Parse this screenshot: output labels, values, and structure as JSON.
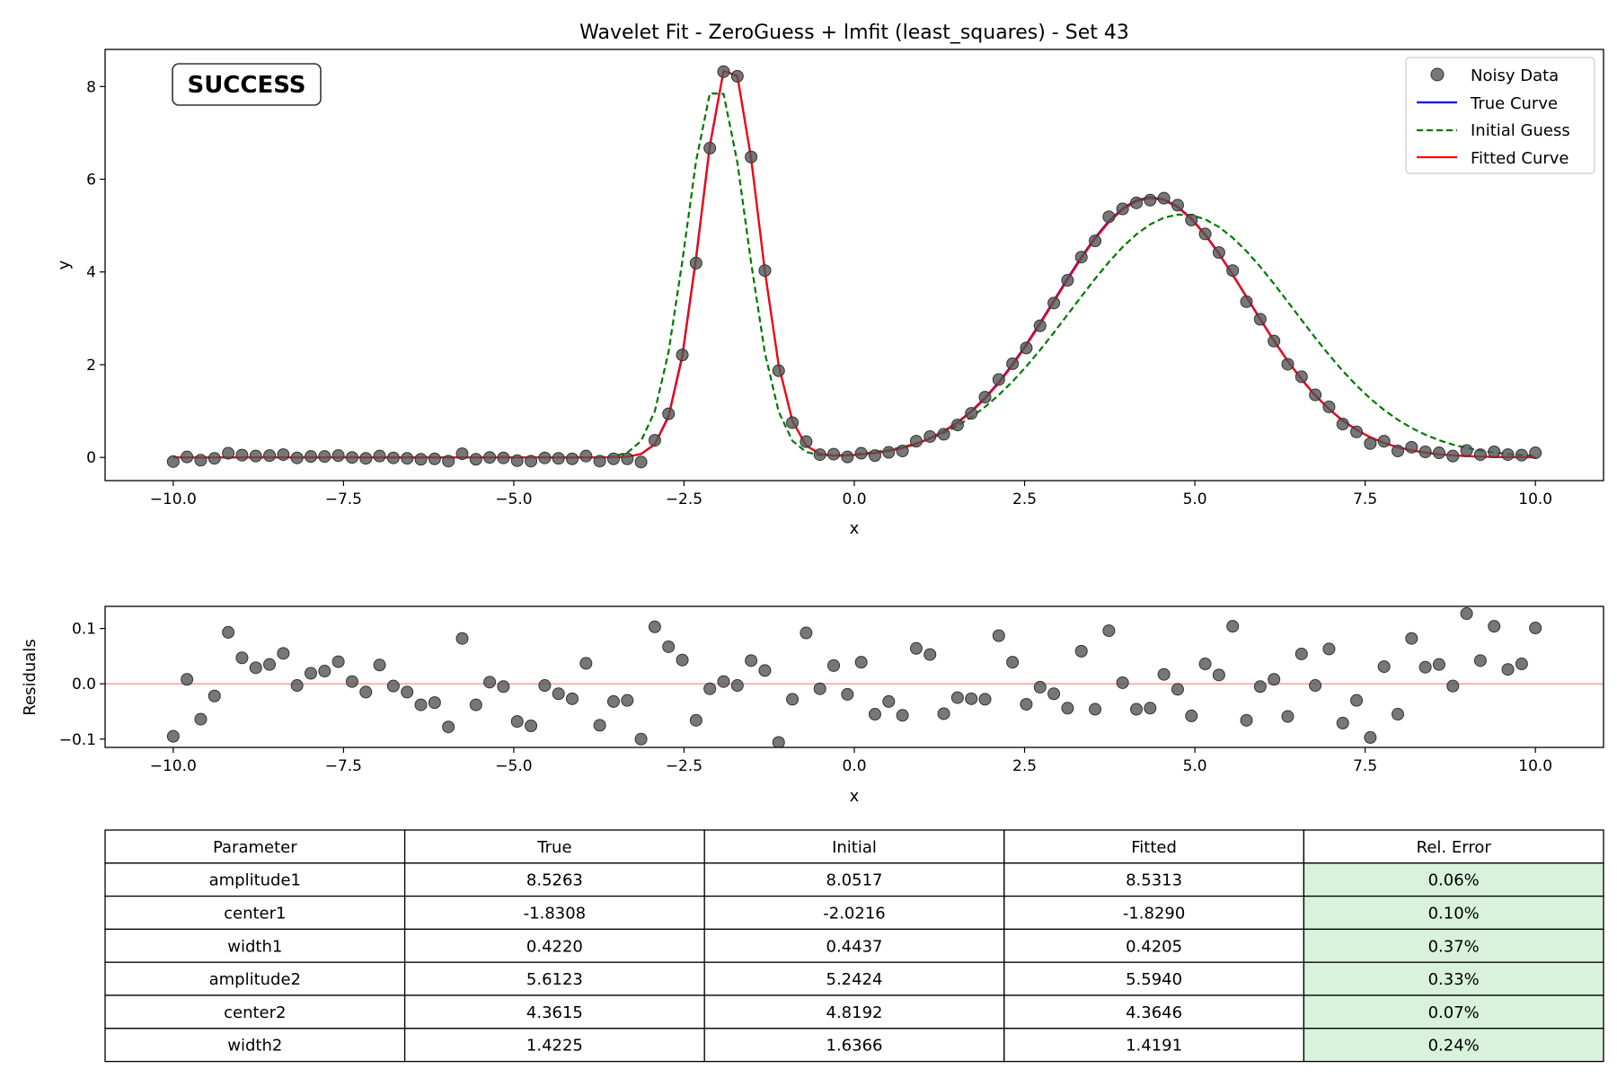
{
  "status_label": "SUCCESS",
  "colors": {
    "data": "#555555",
    "true_curve": "#0000ff",
    "initial": "#007700",
    "fitted": "#ff0000",
    "success": "#008000",
    "zero_line": "#ffb0b0",
    "good_cell": "#d8f2dc"
  },
  "chart_data": [
    {
      "type": "line",
      "title": "Wavelet Fit - ZeroGuess + lmfit (least_squares) - Set 43",
      "xlabel": "x",
      "ylabel": "y",
      "xlim": [
        -11.0,
        11.0
      ],
      "ylim": [
        -0.5,
        8.8
      ],
      "xticks": [
        -10.0,
        -7.5,
        -5.0,
        -2.5,
        0.0,
        2.5,
        5.0,
        7.5,
        10.0
      ],
      "xtick_labels": [
        "−10.0",
        "−7.5",
        "−5.0",
        "−2.5",
        "0.0",
        "2.5",
        "5.0",
        "7.5",
        "10.0"
      ],
      "yticks": [
        0,
        2,
        4,
        6,
        8
      ],
      "ytick_labels": [
        "0",
        "2",
        "4",
        "6",
        "8"
      ],
      "legend_position": "top-right",
      "legend": [
        "Noisy Data",
        "True Curve",
        "Initial Guess",
        "Fitted Curve"
      ],
      "x_range": [
        -10.0,
        10.0
      ],
      "num_points": 100,
      "series": [
        {
          "name": "Noisy Data",
          "style": "scatter",
          "color": "#555555",
          "values": [
            -0.09,
            0.01,
            -0.06,
            -0.02,
            0.09,
            0.05,
            0.03,
            0.04,
            0.06,
            -0.01,
            0.02,
            0.02,
            0.04,
            0.0,
            -0.02,
            0.03,
            -0.01,
            -0.02,
            -0.04,
            -0.03,
            -0.08,
            0.08,
            -0.04,
            0.0,
            -0.01,
            -0.07,
            -0.08,
            -0.01,
            -0.02,
            -0.03,
            0.03,
            -0.08,
            -0.03,
            -0.03,
            -0.1,
            0.37,
            0.94,
            2.21,
            4.19,
            6.67,
            8.32,
            8.22,
            6.48,
            4.03,
            1.87,
            0.75,
            0.34,
            0.06,
            0.07,
            0.01,
            0.09,
            0.04,
            0.11,
            0.14,
            0.35,
            0.45,
            0.5,
            0.7,
            0.95,
            1.3,
            1.68,
            2.02,
            2.36,
            2.84,
            3.33,
            3.82,
            4.32,
            4.67,
            5.19,
            5.36,
            5.49,
            5.55,
            5.59,
            5.44,
            5.12,
            4.82,
            4.42,
            4.03,
            3.36,
            2.98,
            2.51,
            2.01,
            1.74,
            1.35,
            1.09,
            0.72,
            0.55,
            0.3,
            0.35,
            0.14,
            0.22,
            0.12,
            0.1,
            0.03,
            0.15,
            0.06,
            0.12,
            0.06,
            0.05,
            0.1
          ]
        },
        {
          "name": "True Curve",
          "style": "solid",
          "color": "#0000ff",
          "params": {
            "amplitude1": 8.5263,
            "center1": -1.8308,
            "width1": 0.422,
            "amplitude2": 5.6123,
            "center2": 4.3615,
            "width2": 1.4225
          }
        },
        {
          "name": "Initial Guess",
          "style": "dashed",
          "color": "#007700",
          "params": {
            "amplitude1": 8.0517,
            "center1": -2.0216,
            "width1": 0.4437,
            "amplitude2": 5.2424,
            "center2": 4.8192,
            "width2": 1.6366
          }
        },
        {
          "name": "Fitted Curve",
          "style": "solid",
          "color": "#ff0000",
          "params": {
            "amplitude1": 8.5313,
            "center1": -1.829,
            "width1": 0.4205,
            "amplitude2": 5.594,
            "center2": 4.3646,
            "width2": 1.4191
          }
        }
      ]
    },
    {
      "type": "scatter",
      "title": "",
      "xlabel": "x",
      "ylabel": "Residuals",
      "xlim": [
        -11.0,
        11.0
      ],
      "ylim": [
        -0.115,
        0.14
      ],
      "xticks": [
        -10.0,
        -7.5,
        -5.0,
        -2.5,
        0.0,
        2.5,
        5.0,
        7.5,
        10.0
      ],
      "xtick_labels": [
        "−10.0",
        "−7.5",
        "−5.0",
        "−2.5",
        "0.0",
        "2.5",
        "5.0",
        "7.5",
        "10.0"
      ],
      "yticks": [
        -0.1,
        0.0,
        0.1
      ],
      "ytick_labels": [
        "−0.1",
        "0.0",
        "0.1"
      ],
      "reference_line": 0.0,
      "series": [
        {
          "style": "scatter",
          "color": "#555555",
          "values": [
            -0.095,
            0.008,
            -0.064,
            -0.022,
            0.093,
            0.047,
            0.029,
            0.035,
            0.055,
            -0.003,
            0.019,
            0.023,
            0.04,
            0.004,
            -0.015,
            0.034,
            -0.004,
            -0.015,
            -0.038,
            -0.034,
            -0.078,
            0.082,
            -0.038,
            0.003,
            -0.005,
            -0.068,
            -0.076,
            -0.003,
            -0.018,
            -0.027,
            0.037,
            -0.075,
            -0.032,
            -0.03,
            -0.1,
            0.103,
            0.067,
            0.043,
            -0.066,
            -0.009,
            0.004,
            -0.003,
            0.042,
            0.024,
            -0.106,
            -0.028,
            0.092,
            -0.009,
            0.033,
            -0.019,
            0.039,
            -0.055,
            -0.032,
            -0.057,
            0.064,
            0.053,
            -0.054,
            -0.025,
            -0.027,
            -0.028,
            0.087,
            0.039,
            -0.037,
            -0.006,
            -0.018,
            -0.044,
            0.059,
            -0.046,
            0.096,
            0.002,
            -0.046,
            -0.044,
            0.017,
            -0.01,
            -0.058,
            0.036,
            0.016,
            0.104,
            -0.066,
            -0.005,
            0.008,
            -0.059,
            0.054,
            -0.003,
            0.063,
            -0.071,
            -0.03,
            -0.097,
            0.031,
            -0.055,
            0.082,
            0.03,
            0.035,
            -0.004,
            0.127,
            0.042,
            0.104,
            0.026,
            0.036,
            0.101
          ]
        }
      ]
    },
    {
      "type": "table",
      "columns": [
        "Parameter",
        "True",
        "Initial",
        "Fitted",
        "Rel. Error"
      ],
      "rows": [
        [
          "amplitude1",
          "8.5263",
          "8.0517",
          "8.5313",
          "0.06%"
        ],
        [
          "center1",
          "-1.8308",
          "-2.0216",
          "-1.8290",
          "0.10%"
        ],
        [
          "width1",
          "0.4220",
          "0.4437",
          "0.4205",
          "0.37%"
        ],
        [
          "amplitude2",
          "5.6123",
          "5.2424",
          "5.5940",
          "0.33%"
        ],
        [
          "center2",
          "4.3615",
          "4.8192",
          "4.3646",
          "0.07%"
        ],
        [
          "width2",
          "1.4225",
          "1.6366",
          "1.4191",
          "0.24%"
        ]
      ],
      "highlight_column": "Rel. Error",
      "highlight_color": "#d8f2dc"
    }
  ]
}
